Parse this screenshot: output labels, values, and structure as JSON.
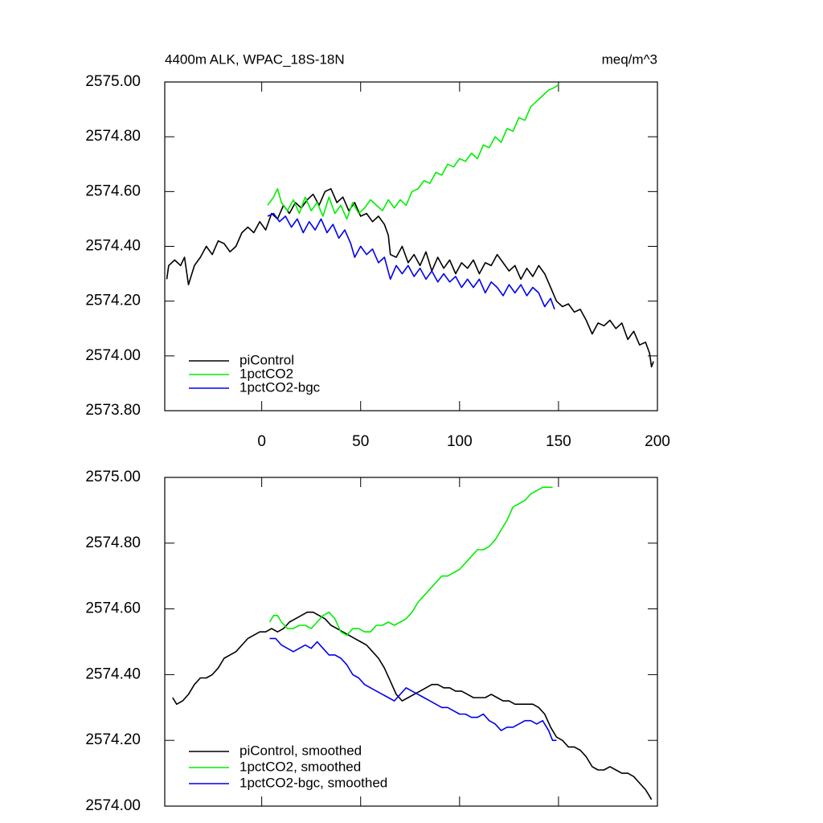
{
  "chart_data": [
    {
      "type": "line",
      "title": "4400m ALK, WPAC_18S-18N",
      "units": "meq/m^3",
      "xlim": [
        -49,
        200
      ],
      "xticks": [
        0,
        50,
        100,
        150,
        200
      ],
      "xtick_labels": true,
      "ylim": [
        2573.8,
        2575.0
      ],
      "yticks": [
        {
          "value": 2573.8,
          "label": "2573.80"
        },
        {
          "value": 2574.0,
          "label": "2574.00"
        },
        {
          "value": 2574.2,
          "label": "2574.20"
        },
        {
          "value": 2574.4,
          "label": "2574.40"
        },
        {
          "value": 2574.6,
          "label": "2574.60"
        },
        {
          "value": 2574.8,
          "label": "2574.80"
        },
        {
          "value": 2575.0,
          "label": "2575.00"
        }
      ],
      "legend": "lower left",
      "series": [
        {
          "name": "piControl",
          "color": "#000000",
          "x": [
            -48,
            -47,
            -44,
            -41,
            -39,
            -37,
            -34,
            -31,
            -28,
            -25,
            -22,
            -19,
            -16,
            -13,
            -10,
            -7,
            -4,
            -1,
            2,
            5,
            8,
            11,
            14,
            17,
            20,
            23,
            26,
            29,
            32,
            35,
            38,
            41,
            44,
            47,
            50,
            53,
            56,
            59,
            62,
            64,
            65,
            68,
            71,
            74,
            77,
            80,
            83,
            86,
            89,
            92,
            95,
            98,
            101,
            104,
            107,
            110,
            113,
            116,
            119,
            122,
            125,
            128,
            131,
            134,
            137,
            140,
            143,
            146,
            149,
            152,
            155,
            158,
            161,
            164,
            167,
            170,
            173,
            176,
            179,
            182,
            185,
            188,
            191,
            194,
            196,
            197,
            198
          ],
          "values": [
            2574.28,
            2574.33,
            2574.35,
            2574.33,
            2574.36,
            2574.26,
            2574.33,
            2574.36,
            2574.4,
            2574.37,
            2574.42,
            2574.41,
            2574.38,
            2574.4,
            2574.45,
            2574.47,
            2574.45,
            2574.49,
            2574.46,
            2574.52,
            2574.5,
            2574.55,
            2574.52,
            2574.56,
            2574.54,
            2574.57,
            2574.59,
            2574.55,
            2574.6,
            2574.61,
            2574.56,
            2574.58,
            2574.53,
            2574.56,
            2574.51,
            2574.52,
            2574.49,
            2574.51,
            2574.48,
            2574.44,
            2574.37,
            2574.36,
            2574.4,
            2574.34,
            2574.37,
            2574.33,
            2574.38,
            2574.31,
            2574.36,
            2574.32,
            2574.35,
            2574.3,
            2574.34,
            2574.32,
            2574.35,
            2574.3,
            2574.34,
            2574.33,
            2574.37,
            2574.34,
            2574.31,
            2574.33,
            2574.28,
            2574.32,
            2574.29,
            2574.33,
            2574.3,
            2574.25,
            2574.2,
            2574.18,
            2574.19,
            2574.16,
            2574.17,
            2574.13,
            2574.08,
            2574.12,
            2574.11,
            2574.13,
            2574.1,
            2574.12,
            2574.06,
            2574.09,
            2574.04,
            2574.05,
            2574.01,
            2573.96,
            2573.98
          ]
        },
        {
          "name": "1pctCO2",
          "color": "#00ee00",
          "x": [
            3,
            6,
            8,
            10,
            13,
            16,
            19,
            22,
            25,
            28,
            31,
            34,
            37,
            40,
            43,
            46,
            49,
            52,
            55,
            58,
            61,
            64,
            67,
            70,
            73,
            76,
            79,
            82,
            85,
            88,
            91,
            94,
            97,
            100,
            103,
            106,
            109,
            112,
            115,
            118,
            121,
            124,
            127,
            130,
            133,
            136,
            139,
            142,
            145,
            148,
            150
          ],
          "values": [
            2574.55,
            2574.58,
            2574.61,
            2574.56,
            2574.53,
            2574.57,
            2574.52,
            2574.58,
            2574.53,
            2574.56,
            2574.51,
            2574.58,
            2574.52,
            2574.55,
            2574.5,
            2574.56,
            2574.52,
            2574.54,
            2574.57,
            2574.55,
            2574.53,
            2574.57,
            2574.54,
            2574.57,
            2574.55,
            2574.6,
            2574.61,
            2574.64,
            2574.63,
            2574.67,
            2574.66,
            2574.7,
            2574.69,
            2574.72,
            2574.71,
            2574.74,
            2574.72,
            2574.77,
            2574.76,
            2574.8,
            2574.78,
            2574.83,
            2574.82,
            2574.87,
            2574.86,
            2574.91,
            2574.93,
            2574.95,
            2574.97,
            2574.98,
            2574.99
          ]
        },
        {
          "name": "1pctCO2-bgc",
          "color": "#0000ee",
          "x": [
            3,
            6,
            9,
            12,
            15,
            18,
            21,
            24,
            27,
            30,
            33,
            36,
            39,
            42,
            45,
            47,
            50,
            53,
            56,
            59,
            62,
            65,
            68,
            71,
            74,
            77,
            80,
            83,
            86,
            89,
            92,
            95,
            98,
            101,
            104,
            107,
            110,
            113,
            116,
            119,
            122,
            125,
            128,
            131,
            134,
            137,
            140,
            143,
            146,
            148
          ],
          "values": [
            2574.51,
            2574.52,
            2574.49,
            2574.51,
            2574.47,
            2574.5,
            2574.45,
            2574.49,
            2574.46,
            2574.5,
            2574.45,
            2574.48,
            2574.43,
            2574.46,
            2574.41,
            2574.36,
            2574.4,
            2574.37,
            2574.39,
            2574.34,
            2574.36,
            2574.28,
            2574.33,
            2574.3,
            2574.33,
            2574.29,
            2574.32,
            2574.28,
            2574.31,
            2574.27,
            2574.3,
            2574.27,
            2574.29,
            2574.25,
            2574.28,
            2574.25,
            2574.28,
            2574.23,
            2574.27,
            2574.25,
            2574.22,
            2574.26,
            2574.23,
            2574.26,
            2574.22,
            2574.25,
            2574.23,
            2574.18,
            2574.21,
            2574.17
          ]
        }
      ]
    },
    {
      "type": "line",
      "xlim": [
        -49,
        200
      ],
      "xticks": [
        0,
        50,
        100,
        150,
        200
      ],
      "xtick_labels": false,
      "ylim": [
        2574.0,
        2575.0
      ],
      "yticks": [
        {
          "value": 2574.0,
          "label": "2574.00"
        },
        {
          "value": 2574.2,
          "label": "2574.20"
        },
        {
          "value": 2574.4,
          "label": "2574.40"
        },
        {
          "value": 2574.6,
          "label": "2574.60"
        },
        {
          "value": 2574.8,
          "label": "2574.80"
        },
        {
          "value": 2575.0,
          "label": "2575.00"
        }
      ],
      "legend": "lower left",
      "series": [
        {
          "name": "piControl, smoothed",
          "color": "#000000",
          "x": [
            -45,
            -43,
            -40,
            -37,
            -34,
            -31,
            -28,
            -25,
            -22,
            -19,
            -16,
            -13,
            -10,
            -7,
            -4,
            -1,
            2,
            5,
            8,
            11,
            14,
            17,
            20,
            23,
            26,
            29,
            32,
            35,
            38,
            41,
            44,
            47,
            50,
            53,
            56,
            59,
            62,
            65,
            68,
            71,
            74,
            77,
            80,
            83,
            86,
            89,
            92,
            95,
            98,
            101,
            104,
            107,
            110,
            113,
            116,
            119,
            122,
            125,
            128,
            131,
            134,
            137,
            140,
            143,
            146,
            149,
            152,
            155,
            158,
            161,
            164,
            167,
            170,
            173,
            176,
            179,
            182,
            185,
            188,
            191,
            194,
            196,
            197
          ],
          "values": [
            2574.33,
            2574.31,
            2574.32,
            2574.34,
            2574.37,
            2574.39,
            2574.39,
            2574.4,
            2574.42,
            2574.45,
            2574.46,
            2574.47,
            2574.49,
            2574.51,
            2574.52,
            2574.53,
            2574.53,
            2574.54,
            2574.53,
            2574.54,
            2574.56,
            2574.57,
            2574.58,
            2574.59,
            2574.59,
            2574.58,
            2574.57,
            2574.55,
            2574.54,
            2574.53,
            2574.52,
            2574.51,
            2574.5,
            2574.49,
            2574.47,
            2574.45,
            2574.42,
            2574.38,
            2574.34,
            2574.32,
            2574.33,
            2574.34,
            2574.35,
            2574.36,
            2574.37,
            2574.37,
            2574.36,
            2574.36,
            2574.35,
            2574.35,
            2574.34,
            2574.33,
            2574.33,
            2574.33,
            2574.34,
            2574.33,
            2574.32,
            2574.32,
            2574.31,
            2574.31,
            2574.31,
            2574.31,
            2574.3,
            2574.28,
            2574.24,
            2574.21,
            2574.2,
            2574.18,
            2574.18,
            2574.17,
            2574.15,
            2574.12,
            2574.11,
            2574.11,
            2574.12,
            2574.11,
            2574.1,
            2574.1,
            2574.09,
            2574.07,
            2574.05,
            2574.03,
            2574.02
          ]
        },
        {
          "name": "1pctCO2, smoothed",
          "color": "#00ee00",
          "x": [
            4,
            6,
            8,
            10,
            13,
            16,
            19,
            22,
            25,
            28,
            31,
            34,
            37,
            40,
            43,
            46,
            49,
            52,
            55,
            58,
            61,
            64,
            67,
            70,
            73,
            76,
            79,
            82,
            85,
            88,
            91,
            94,
            97,
            100,
            103,
            106,
            109,
            112,
            115,
            118,
            121,
            124,
            127,
            130,
            133,
            136,
            139,
            142,
            147
          ],
          "values": [
            2574.56,
            2574.58,
            2574.58,
            2574.56,
            2574.54,
            2574.54,
            2574.55,
            2574.55,
            2574.54,
            2574.56,
            2574.58,
            2574.59,
            2574.57,
            2574.53,
            2574.52,
            2574.54,
            2574.54,
            2574.53,
            2574.53,
            2574.55,
            2574.55,
            2574.56,
            2574.55,
            2574.56,
            2574.57,
            2574.59,
            2574.62,
            2574.64,
            2574.66,
            2574.68,
            2574.7,
            2574.7,
            2574.71,
            2574.72,
            2574.74,
            2574.76,
            2574.78,
            2574.78,
            2574.79,
            2574.81,
            2574.84,
            2574.87,
            2574.91,
            2574.92,
            2574.93,
            2574.95,
            2574.96,
            2574.97,
            2574.97
          ]
        },
        {
          "name": "1pctCO2-bgc, smoothed",
          "color": "#0000ee",
          "x": [
            4,
            7,
            10,
            13,
            16,
            19,
            22,
            25,
            28,
            31,
            34,
            37,
            40,
            43,
            46,
            49,
            52,
            55,
            58,
            61,
            64,
            67,
            70,
            73,
            76,
            79,
            82,
            85,
            88,
            91,
            94,
            97,
            100,
            103,
            106,
            109,
            112,
            115,
            118,
            121,
            124,
            127,
            130,
            133,
            136,
            139,
            142,
            145,
            147,
            149
          ],
          "values": [
            2574.51,
            2574.51,
            2574.49,
            2574.48,
            2574.47,
            2574.48,
            2574.49,
            2574.48,
            2574.5,
            2574.48,
            2574.46,
            2574.46,
            2574.45,
            2574.43,
            2574.4,
            2574.39,
            2574.37,
            2574.36,
            2574.35,
            2574.34,
            2574.33,
            2574.32,
            2574.34,
            2574.36,
            2574.35,
            2574.34,
            2574.33,
            2574.32,
            2574.31,
            2574.3,
            2574.3,
            2574.29,
            2574.28,
            2574.28,
            2574.27,
            2574.27,
            2574.28,
            2574.26,
            2574.25,
            2574.23,
            2574.24,
            2574.24,
            2574.25,
            2574.26,
            2574.26,
            2574.25,
            2574.26,
            2574.23,
            2574.2,
            2574.2
          ]
        }
      ]
    }
  ]
}
